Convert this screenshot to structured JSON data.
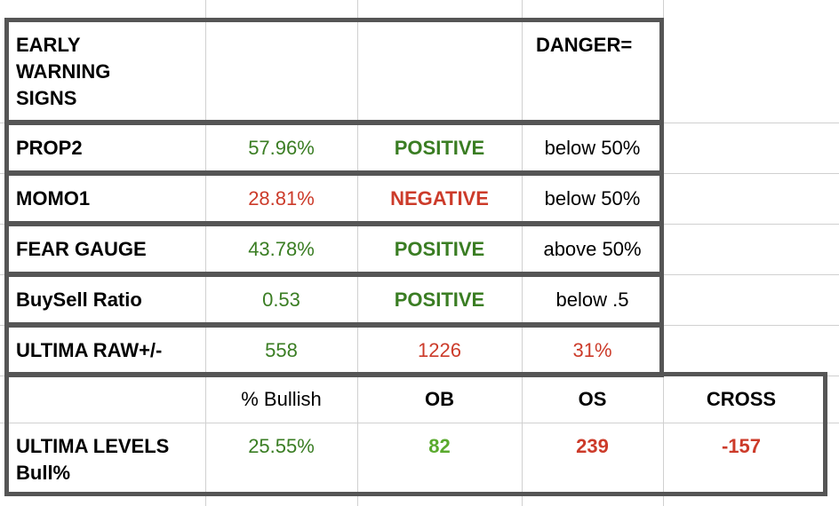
{
  "colors": {
    "positive": "#3a7d23",
    "negative": "#cc3b2a",
    "ob_green": "#5aaa2e",
    "border": "#555555",
    "grid": "#d0d0d0"
  },
  "header": {
    "title": "EARLY\nWARNING\nSIGNS",
    "danger_label": "DANGER="
  },
  "rows": [
    {
      "label": "PROP2",
      "value": "57.96%",
      "status": "POSITIVE",
      "danger": "below 50%"
    },
    {
      "label": "MOMO1",
      "value": "28.81%",
      "status": "NEGATIVE",
      "danger": "below 50%"
    },
    {
      "label": "FEAR GAUGE",
      "value": "43.78%",
      "status": "POSITIVE",
      "danger": "above 50%"
    },
    {
      "label": "BuySell Ratio",
      "value": "0.53",
      "status": "POSITIVE",
      "danger": "below .5"
    }
  ],
  "ultima_raw": {
    "label": "ULTIMA RAW+/-",
    "v1": "558",
    "v2": "1226",
    "v3": "31%"
  },
  "levels_header": {
    "bullish": "% Bullish",
    "ob": "OB",
    "os": "OS",
    "cross": "CROSS"
  },
  "levels": {
    "label": "ULTIMA LEVELS\nBull%",
    "bullish": "25.55%",
    "ob": "82",
    "os": "239",
    "cross": "-157"
  }
}
